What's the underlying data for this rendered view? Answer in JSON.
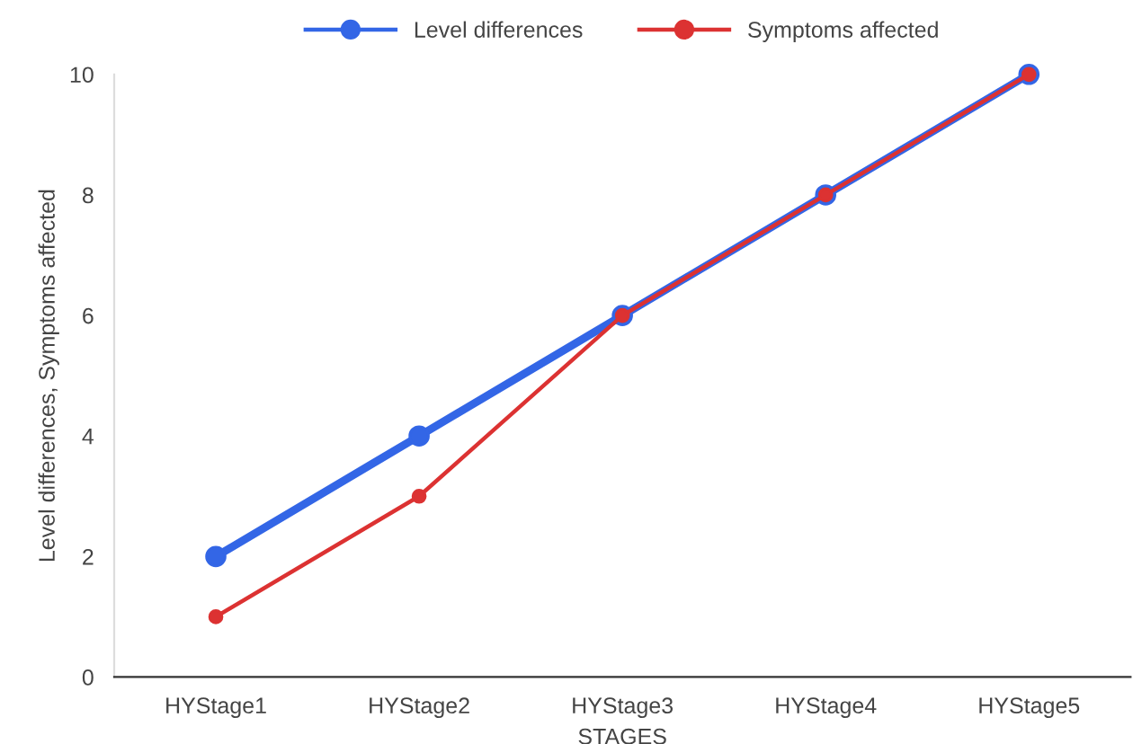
{
  "chart_data": {
    "type": "line",
    "xlabel": "STAGES",
    "ylabel": "Level differences, Symptoms affected",
    "categories": [
      "HYStage1",
      "HYStage2",
      "HYStage3",
      "HYStage4",
      "HYStage5"
    ],
    "series": [
      {
        "name": "Level differences",
        "color": "#3366e6",
        "values": [
          2,
          4,
          6,
          8,
          10
        ]
      },
      {
        "name": "Symptoms affected",
        "color": "#dc3232",
        "values": [
          1,
          3,
          6,
          8,
          10
        ]
      }
    ],
    "ylim": [
      0,
      10
    ],
    "yticks": [
      0,
      2,
      4,
      6,
      8,
      10
    ],
    "grid": false,
    "legend": "top",
    "marker": "circle",
    "line_style": "solid"
  }
}
